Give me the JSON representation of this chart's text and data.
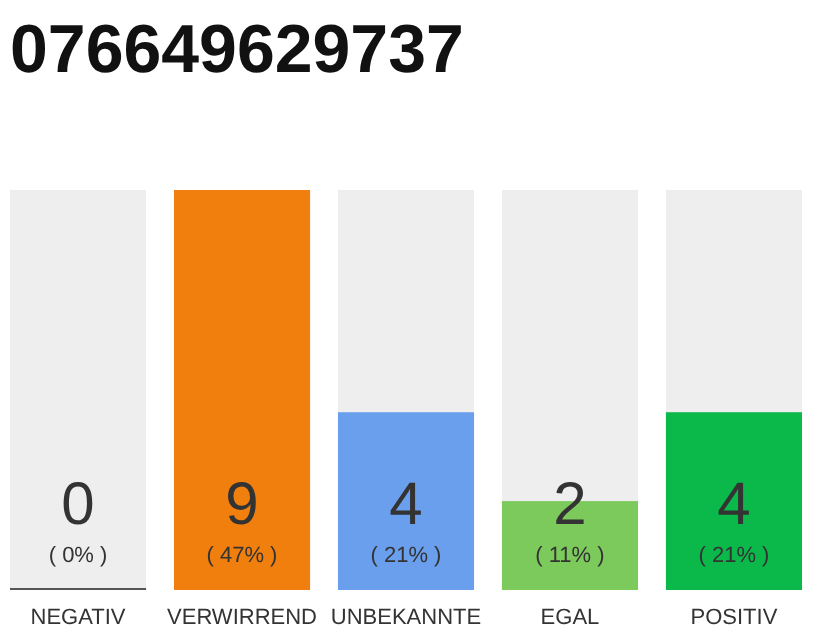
{
  "chart_data": {
    "type": "bar",
    "title": "076649629737",
    "categories": [
      "NEGATIV",
      "VERWIRREND",
      "UNBEKANNTE",
      "EGAL",
      "POSITIV"
    ],
    "values": [
      0,
      9,
      4,
      2,
      4
    ],
    "colors": [
      "#555555",
      "#f07f0e",
      "#6a9fee",
      "#7cc95c",
      "#0bb84a"
    ],
    "ylim": [
      0,
      9
    ],
    "data_labels": true,
    "annotations": [
      "( 0% )",
      "( 47% )",
      "( 21% )",
      "( 11% )",
      "( 21% )"
    ]
  }
}
